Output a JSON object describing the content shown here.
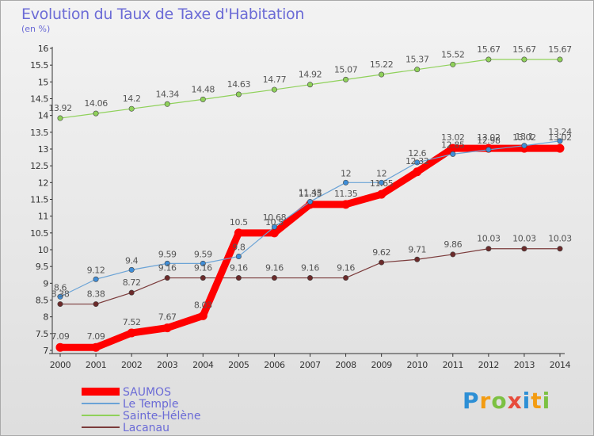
{
  "chart_data": {
    "type": "line",
    "title": "Evolution du Taux de Taxe d'Habitation",
    "subtitle": "(en %)",
    "x": [
      2000,
      2001,
      2002,
      2003,
      2004,
      2005,
      2006,
      2007,
      2008,
      2009,
      2010,
      2011,
      2012,
      2013,
      2014
    ],
    "ylim": [
      7,
      16
    ],
    "yticks": [
      7,
      7.5,
      8,
      8.5,
      9,
      9.5,
      10,
      10.5,
      11,
      11.5,
      12,
      12.5,
      13,
      13.5,
      14,
      14.5,
      15,
      15.5,
      16
    ],
    "legend_position": "bottom-left",
    "grid": false,
    "series": [
      {
        "name": "SAUMOS",
        "color": "#ff0000",
        "values": [
          7.09,
          7.09,
          7.52,
          7.67,
          8.03,
          10.5,
          10.5,
          11.35,
          11.35,
          11.65,
          12.32,
          13.02,
          13.02,
          13.02,
          13.02
        ],
        "labels": [
          "7.09",
          "7.09",
          "7.52",
          "7.67",
          "8.03",
          "10.5",
          "10.5",
          "11.35",
          "11.35",
          "11.65",
          "12.32",
          "13.02",
          "13.02",
          "13.02",
          "13.02"
        ]
      },
      {
        "name": "Le Temple",
        "color": "#6ba3d6",
        "values": [
          8.6,
          9.12,
          9.4,
          9.59,
          9.59,
          9.8,
          10.68,
          11.43,
          12,
          12,
          12.6,
          12.85,
          12.98,
          13.1,
          13.24
        ],
        "labels": [
          "8.6",
          "9.12",
          "9.4",
          "9.59",
          "9.59",
          "9.8",
          "10.68",
          "11.43",
          "12",
          "12",
          "12.6",
          "12.85",
          "12.98",
          "13.1",
          "13.24"
        ]
      },
      {
        "name": "Sainte-Hélène",
        "color": "#8fd15a",
        "values": [
          13.92,
          14.06,
          14.2,
          14.34,
          14.48,
          14.63,
          14.77,
          14.92,
          15.07,
          15.22,
          15.37,
          15.52,
          15.67,
          15.67,
          15.67
        ],
        "labels": [
          "13.92",
          "14.06",
          "14.2",
          "14.34",
          "14.48",
          "14.63",
          "14.77",
          "14.92",
          "15.07",
          "15.22",
          "15.37",
          "15.52",
          "15.67",
          "15.67",
          "15.67"
        ]
      },
      {
        "name": "Lacanau",
        "color": "#7b3b3b",
        "values": [
          8.38,
          8.38,
          8.72,
          9.16,
          9.16,
          9.16,
          9.16,
          9.16,
          9.16,
          9.62,
          9.71,
          9.86,
          10.03,
          10.03,
          10.03
        ],
        "labels": [
          "8.38",
          "8.38",
          "8.72",
          "9.16",
          "9.16",
          "9.16",
          "9.16",
          "9.16",
          "9.16",
          "9.62",
          "9.71",
          "9.86",
          "10.03",
          "10.03",
          "10.03"
        ]
      }
    ]
  },
  "logo": {
    "letters": [
      "P",
      "r",
      "o",
      "x",
      "i",
      "t",
      "i"
    ]
  }
}
